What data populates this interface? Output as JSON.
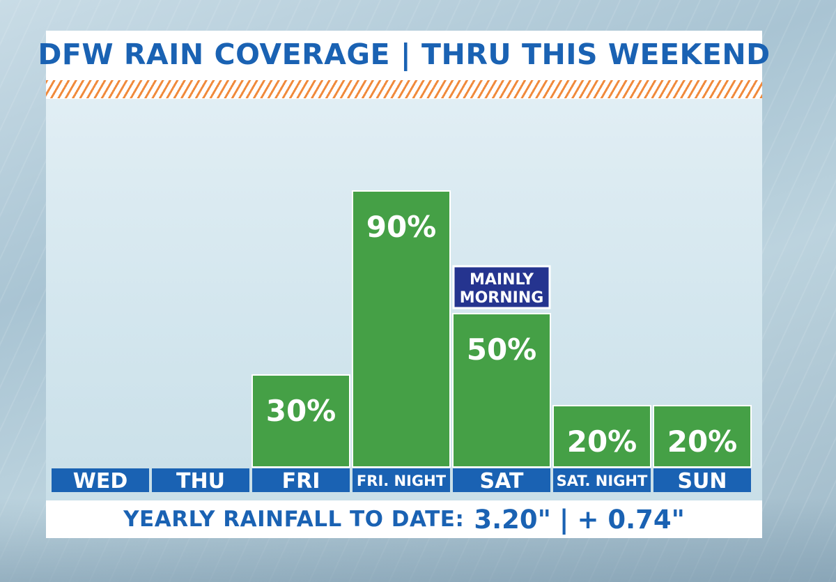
{
  "title": "DFW RAIN COVERAGE | THRU THIS WEEKEND",
  "chart_data": {
    "type": "bar",
    "categories": [
      "WED",
      "THU",
      "FRI",
      "FRI. NIGHT",
      "SAT",
      "SAT. NIGHT",
      "SUN"
    ],
    "values": [
      0,
      0,
      30,
      90,
      50,
      20,
      20
    ],
    "data_labels": [
      "",
      "",
      "30%",
      "90%",
      "50%",
      "20%",
      "20%"
    ],
    "ylim": [
      0,
      100
    ],
    "grid": false,
    "annotations": [
      {
        "category": "SAT",
        "lines": [
          "MAINLY",
          "MORNING"
        ]
      }
    ],
    "colors": {
      "bar": "#45a046",
      "bar_label": "#ffffff",
      "category_bar": "#1a62b3",
      "annotation_bg": "#25348f"
    }
  },
  "footer": {
    "label": "YEARLY  RAINFALL TO DATE:",
    "value": "3.20\"",
    "separator": "|",
    "departure": "+ 0.74\""
  }
}
